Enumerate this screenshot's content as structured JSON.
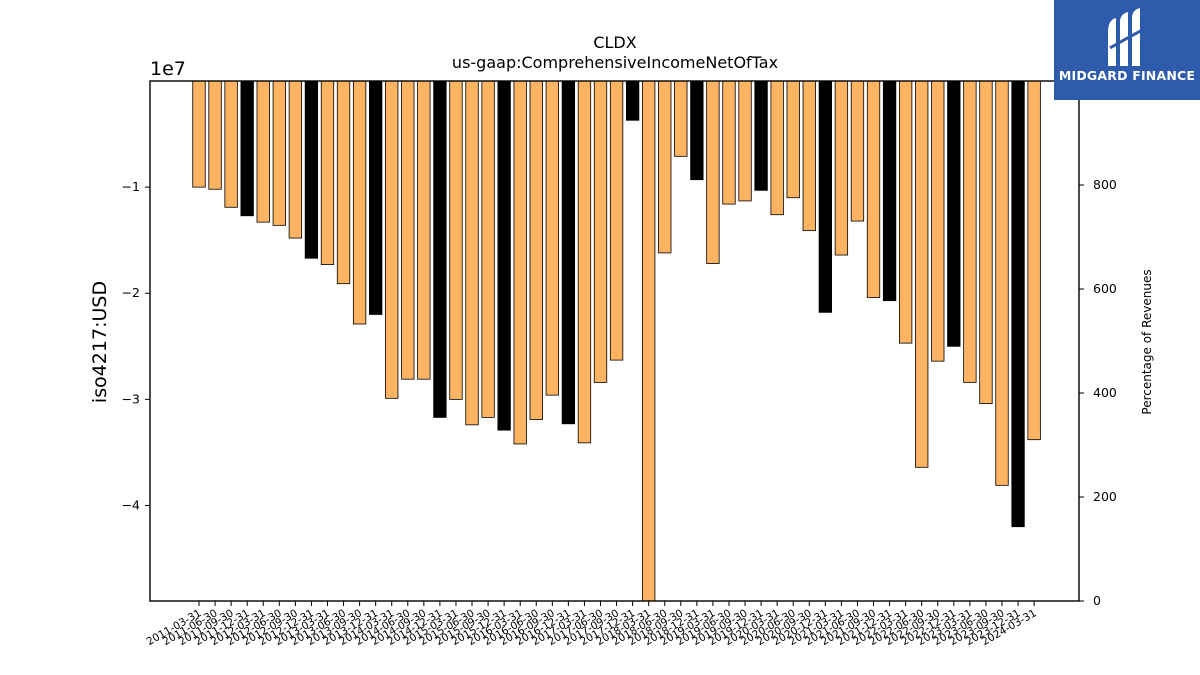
{
  "chart_data": {
    "type": "bar",
    "title": "CLDX",
    "subtitle": "us-gaap:ComprehensiveIncomeNetOfTax",
    "ylabel": "iso4217:USD",
    "y_offset_label": "1e7",
    "y2label": "Percentage of Revenues",
    "ylim": [
      -4.9,
      0
    ],
    "y2lim": [
      0,
      1000
    ],
    "yticks": [
      "−1",
      "−2",
      "−3",
      "−4"
    ],
    "y2ticks": [
      "800",
      "600",
      "400",
      "200",
      "0"
    ],
    "grid": false,
    "colors": {
      "quarter": "#fdb462",
      "annual": "#000000"
    },
    "categories": [
      "2011-03-31",
      "2011-06-30",
      "2011-09-30",
      "2011-12-31",
      "2012-03-31",
      "2012-06-30",
      "2012-09-30",
      "2012-12-31",
      "2013-03-31",
      "2013-06-30",
      "2013-09-30",
      "2013-12-31",
      "2014-03-31",
      "2014-06-30",
      "2014-09-30",
      "2014-12-31",
      "2015-03-31",
      "2015-06-30",
      "2015-09-30",
      "2015-12-31",
      "2016-03-31",
      "2016-06-30",
      "2016-09-30",
      "2016-12-31",
      "2017-03-31",
      "2017-06-30",
      "2017-09-30",
      "2017-12-31",
      "2018-03-31",
      "2018-06-30",
      "2018-09-30",
      "2018-12-31",
      "2019-03-31",
      "2019-06-30",
      "2019-09-30",
      "2019-12-31",
      "2020-03-31",
      "2020-06-30",
      "2020-09-30",
      "2020-12-31",
      "2021-03-31",
      "2021-06-30",
      "2021-09-30",
      "2021-12-31",
      "2022-03-31",
      "2022-06-30",
      "2022-09-30",
      "2022-12-31",
      "2023-03-31",
      "2023-06-30",
      "2023-09-30",
      "2023-12-31",
      "2024-03-31"
    ],
    "values": [
      -1.0,
      -1.02,
      -1.19,
      -1.27,
      -1.33,
      -1.36,
      -1.48,
      -1.67,
      -1.73,
      -1.91,
      -2.29,
      -2.2,
      -2.99,
      -2.81,
      -2.81,
      -3.17,
      -3.0,
      -3.24,
      -3.17,
      -3.29,
      -3.42,
      -3.19,
      -2.96,
      -3.23,
      -3.41,
      -2.84,
      -2.63,
      -0.37,
      -4.9,
      -1.62,
      -0.71,
      -0.93,
      -1.72,
      -1.16,
      -1.13,
      -1.03,
      -1.26,
      -1.1,
      -1.41,
      -2.18,
      -1.64,
      -1.32,
      -2.04,
      -2.07,
      -2.47,
      -3.64,
      -2.64,
      -2.5,
      -2.84,
      -3.04,
      -3.81,
      -4.2,
      -3.38
    ],
    "annual_flags": [
      0,
      0,
      0,
      1,
      0,
      0,
      0,
      1,
      0,
      0,
      0,
      1,
      0,
      0,
      0,
      1,
      0,
      0,
      0,
      1,
      0,
      0,
      0,
      1,
      0,
      0,
      0,
      1,
      0,
      0,
      0,
      1,
      0,
      0,
      0,
      1,
      0,
      0,
      0,
      1,
      0,
      0,
      0,
      1,
      0,
      0,
      0,
      1,
      0,
      0,
      0,
      1,
      0
    ]
  },
  "logo": {
    "text": "MIDGARD FINANCE",
    "background": "#2e5bab"
  }
}
